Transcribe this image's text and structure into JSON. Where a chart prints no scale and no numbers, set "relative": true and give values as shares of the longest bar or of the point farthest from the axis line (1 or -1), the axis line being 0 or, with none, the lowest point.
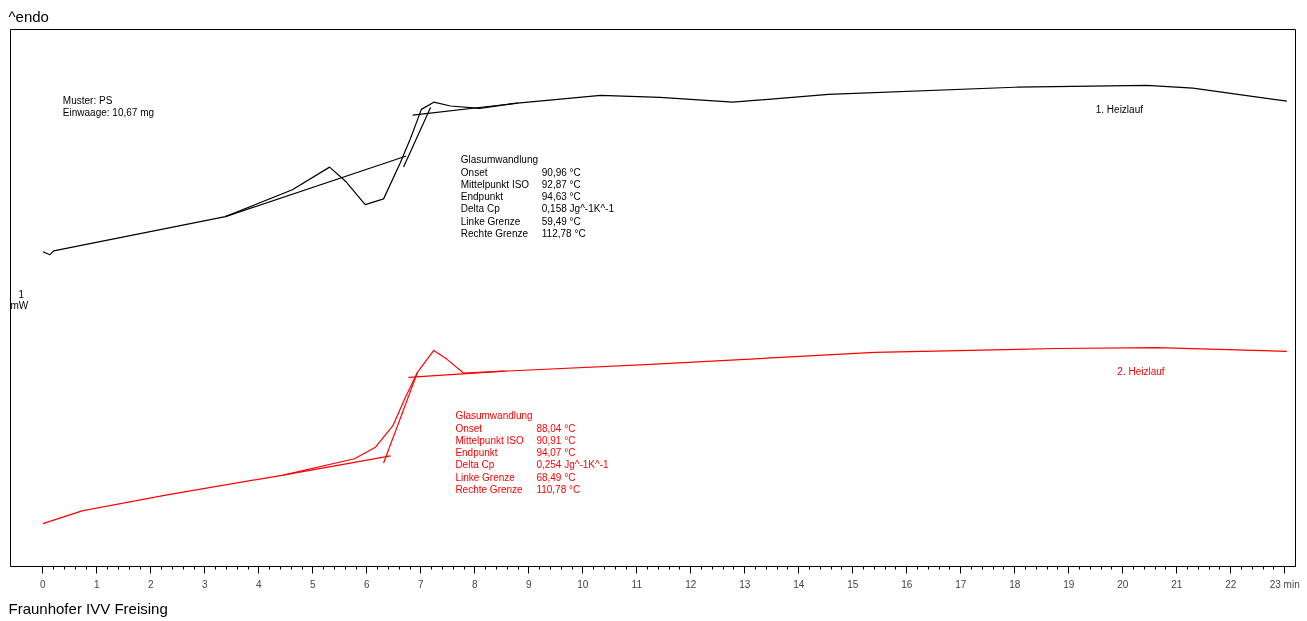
{
  "chart_data": {
    "type": "line",
    "relative": true,
    "xlim": [
      -0.6,
      23.2
    ],
    "xticks": [
      0,
      1,
      2,
      3,
      4,
      5,
      6,
      7,
      8,
      9,
      10,
      11,
      12,
      13,
      14,
      15,
      16,
      17,
      18,
      19,
      20,
      21,
      22,
      {
        "value": 23,
        "label": "23 min"
      }
    ],
    "grid": false,
    "legend": false,
    "marker": "none",
    "line_style": "solid",
    "series": [
      {
        "name": "1. Heizlauf",
        "color": "#000000",
        "x": [
          0,
          0.13,
          0.2,
          3.38,
          4.62,
          5.31,
          5.62,
          5.97,
          6.31,
          6.62,
          6.81,
          7.01,
          7.24,
          7.55,
          8.09,
          8.79,
          10.33,
          11.43,
          12.78,
          14.55,
          18.0,
          20.45,
          21.3,
          23.04
        ],
        "values": [
          0.654,
          0.648,
          0.656,
          0.727,
          0.783,
          0.83,
          0.799,
          0.752,
          0.764,
          0.839,
          0.89,
          0.95,
          0.965,
          0.957,
          0.952,
          0.963,
          0.979,
          0.975,
          0.965,
          0.981,
          0.996,
          1.0,
          0.994,
          0.967
        ]
      },
      {
        "name": "2. Heizlauf",
        "color": "#ff0000",
        "x": [
          0,
          0.74,
          2.3,
          4.45,
          5.77,
          6.16,
          6.48,
          6.7,
          6.94,
          7.24,
          7.48,
          7.79,
          8.55,
          11.26,
          15.4,
          18.78,
          20.63,
          23.04
        ],
        "values": [
          0.089,
          0.116,
          0.149,
          0.19,
          0.224,
          0.248,
          0.292,
          0.348,
          0.404,
          0.449,
          0.431,
          0.402,
          0.406,
          0.42,
          0.445,
          0.453,
          0.455,
          0.447
        ]
      },
      {
        "color": "#000000",
        "x": [
          3.38,
          6.73
        ],
        "values": [
          0.727,
          0.853
        ]
      },
      {
        "color": "#000000",
        "x": [
          6.85,
          8.79
        ],
        "values": [
          0.938,
          0.963
        ]
      },
      {
        "color": "#000000",
        "x": [
          6.68,
          7.18
        ],
        "values": [
          0.83,
          0.954
        ]
      },
      {
        "color": "#ff0000",
        "x": [
          4.45,
          6.44
        ],
        "values": [
          0.19,
          0.23
        ]
      },
      {
        "color": "#ff0000",
        "x": [
          6.77,
          8.55
        ],
        "values": [
          0.393,
          0.406
        ]
      },
      {
        "color": "#ff0000",
        "x": [
          6.31,
          6.94
        ],
        "values": [
          0.215,
          0.404
        ]
      }
    ],
    "annotations": [
      "^endo",
      "Muster: PS",
      "Einwaage: 10,67 mg",
      "1",
      "mW",
      "Glasumwandlung",
      "Onset\t90,96 °C",
      "Mittelpunkt ISO\t92,87 °C",
      "Endpunkt\t94,63 °C",
      "Delta Cp\t0,158 Jg^-1K^-1",
      "Linke Grenze\t59,49 °C",
      "Rechte Grenze\t112,78 °C",
      "Glasumwandlung",
      "Onset\t88,04 °C",
      "Mittelpunkt ISO\t90,91 °C",
      "Endpunkt\t94,07 °C",
      "Delta Cp\t0,254 Jg^-1K^-1",
      "Linke Grenze\t68,49 °C",
      "Rechte Grenze\t110,78 °C",
      "Fraunhofer IVV Freising"
    ]
  }
}
